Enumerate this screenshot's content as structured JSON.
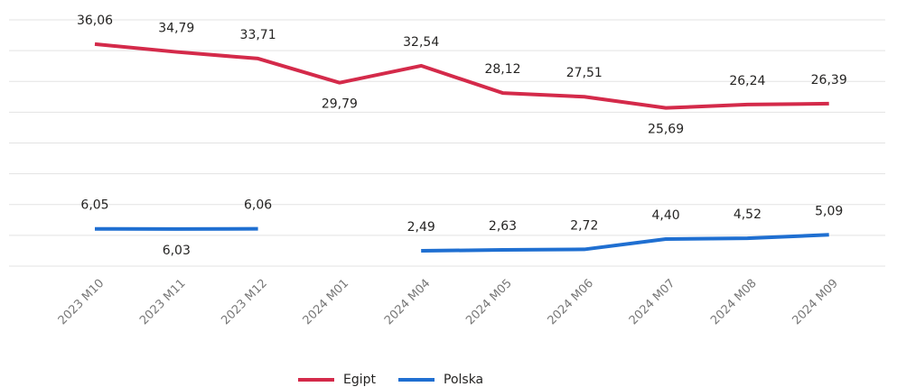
{
  "chart_data": {
    "type": "line",
    "categories": [
      "2023 M10",
      "2023 M11",
      "2023 M12",
      "2024 M01",
      "2024 M04",
      "2024 M05",
      "2024 M06",
      "2024 M07",
      "2024 M08",
      "2024 M09"
    ],
    "series": [
      {
        "name": "Egipt",
        "color": "#d42a4a",
        "values": [
          36.06,
          34.79,
          33.71,
          29.79,
          32.54,
          28.12,
          27.51,
          25.69,
          26.24,
          26.39
        ],
        "value_labels": [
          "36,06",
          "34,79",
          "33,71",
          "29,79",
          "32,54",
          "28,12",
          "27,51",
          "25,69",
          "26,24",
          "26,39"
        ]
      },
      {
        "name": "Polska",
        "color": "#1f6fd1",
        "values": [
          6.05,
          6.03,
          6.06,
          null,
          2.49,
          2.63,
          2.72,
          4.4,
          4.52,
          5.09
        ],
        "value_labels": [
          "6,05",
          "6,03",
          "6,06",
          null,
          "2,49",
          "2,63",
          "2,72",
          "4,40",
          "4,52",
          "5,09"
        ]
      }
    ],
    "ylim": [
      0,
      40
    ],
    "yticks": [
      0,
      5,
      10,
      15,
      20,
      25,
      30,
      35,
      40
    ],
    "grid": true,
    "legend": "bottom"
  }
}
